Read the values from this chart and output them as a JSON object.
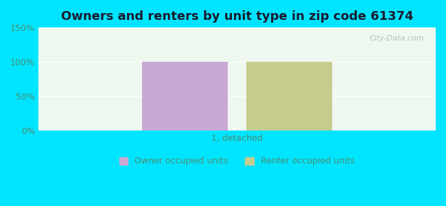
{
  "title": "Owners and renters by unit type in zip code 61374",
  "categories": [
    "1, detached"
  ],
  "owner_values": [
    100
  ],
  "renter_values": [
    100
  ],
  "owner_color": "#c9a8d4",
  "renter_color": "#c5cc8e",
  "ylim": [
    0,
    150
  ],
  "yticks": [
    0,
    50,
    100,
    150
  ],
  "ytick_labels": [
    "0%",
    "50%",
    "100%",
    "150%"
  ],
  "bg_color": "#00e5ff",
  "plot_bg_top": "#e8f8f0",
  "plot_bg_bottom": "#f5fdf5",
  "owner_label": "Owner occupied units",
  "renter_label": "Renter occupied units",
  "bar_width": 0.28,
  "bar_gap": 0.06,
  "watermark": "City-Data.com",
  "tick_color": "#4d8c6f",
  "title_color": "#1a1a2e"
}
